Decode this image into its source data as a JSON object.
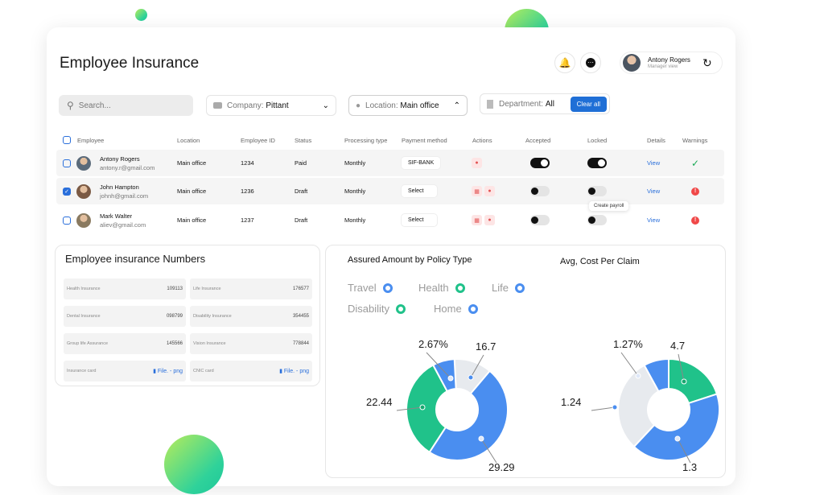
{
  "page": {
    "title": "Employee Insurance"
  },
  "user": {
    "name": "Antony Rogers",
    "role": "Manager view"
  },
  "filters": {
    "search_placeholder": "Search...",
    "company_label": "Company:",
    "company_value": "Pittant",
    "location_label": "Location:",
    "location_value": "Main office",
    "department_label": "Department:",
    "department_value": "All",
    "clear_all": "Clear all"
  },
  "table": {
    "headers": [
      "Employee",
      "Location",
      "Employee ID",
      "Status",
      "Processing type",
      "Payment method",
      "Actions",
      "Accepted",
      "Locked",
      "Details",
      "Warnings"
    ],
    "rows": [
      {
        "name": "Antony Rogers",
        "email": "antony.r@gmail.com",
        "location": "Main office",
        "id": "1234",
        "status": "Paid",
        "processing": "Monthly",
        "payment": "SIF-BANK",
        "details": "View",
        "checked": false,
        "accepted": true,
        "locked": true,
        "warning": "ok",
        "row_color": "#f5f5f5"
      },
      {
        "name": "John Hampton",
        "email": "johnh@gmail.com",
        "location": "Main office",
        "id": "1236",
        "status": "Draft",
        "processing": "Monthly",
        "payment": "Select",
        "details": "View",
        "checked": true,
        "accepted": false,
        "locked": false,
        "warning": "error",
        "row_color": "#f5f5f5"
      },
      {
        "name": "Mark Walter",
        "email": "aliev@gmail.com",
        "location": "Main office",
        "id": "1237",
        "status": "Draft",
        "processing": "Monthly",
        "payment": "Select",
        "details": "View",
        "checked": false,
        "accepted": false,
        "locked": false,
        "warning": "error",
        "row_color": "#ffffff"
      }
    ],
    "tooltip": "Create payroll"
  },
  "insurance_numbers": {
    "title": "Employee insurance Numbers",
    "items": [
      {
        "label": "Health Insurance",
        "value": "109113"
      },
      {
        "label": "Life Insurance",
        "value": "176577"
      },
      {
        "label": "Dental Insurance",
        "value": "098799"
      },
      {
        "label": "Disability Insurance",
        "value": "354455"
      },
      {
        "label": "Group life Assurance",
        "value": "145566"
      },
      {
        "label": "Vision Insurance",
        "value": "778844"
      },
      {
        "label": "Insurance card",
        "value": "File. - png"
      },
      {
        "label": "CNIC card",
        "value": "File. - png"
      }
    ]
  },
  "legend": [
    {
      "label": "Travel",
      "color": "#4a8ef0"
    },
    {
      "label": "Health",
      "color": "#20c28a"
    },
    {
      "label": "Life",
      "color": "#4a8ef0"
    },
    {
      "label": "Disability",
      "color": "#20c28a"
    },
    {
      "label": "Home",
      "color": "#4a8ef0"
    }
  ],
  "chart_data": [
    {
      "type": "pie",
      "title": "Assured Amount by Policy Type",
      "slices": [
        {
          "label": "16.7",
          "value": 16.7,
          "color": "#e7eaee"
        },
        {
          "label": "29.29",
          "value": 29.29,
          "color": "#4a8ef0"
        },
        {
          "label": "22.44",
          "value": 22.44,
          "color": "#20c28a"
        },
        {
          "label": "2.67%",
          "value": 2.67,
          "color": "#4a8ef0"
        }
      ]
    },
    {
      "type": "pie",
      "title": "Avg, Cost Per Claim",
      "slices": [
        {
          "label": "4.7",
          "value": 4.7,
          "color": "#20c28a"
        },
        {
          "label": "1.3",
          "value": 1.3,
          "color": "#4a8ef0"
        },
        {
          "label": "1.24",
          "value": 1.24,
          "color": "#e7eaee"
        },
        {
          "label": "1.27%",
          "value": 1.27,
          "color": "#4a8ef0"
        }
      ]
    }
  ]
}
